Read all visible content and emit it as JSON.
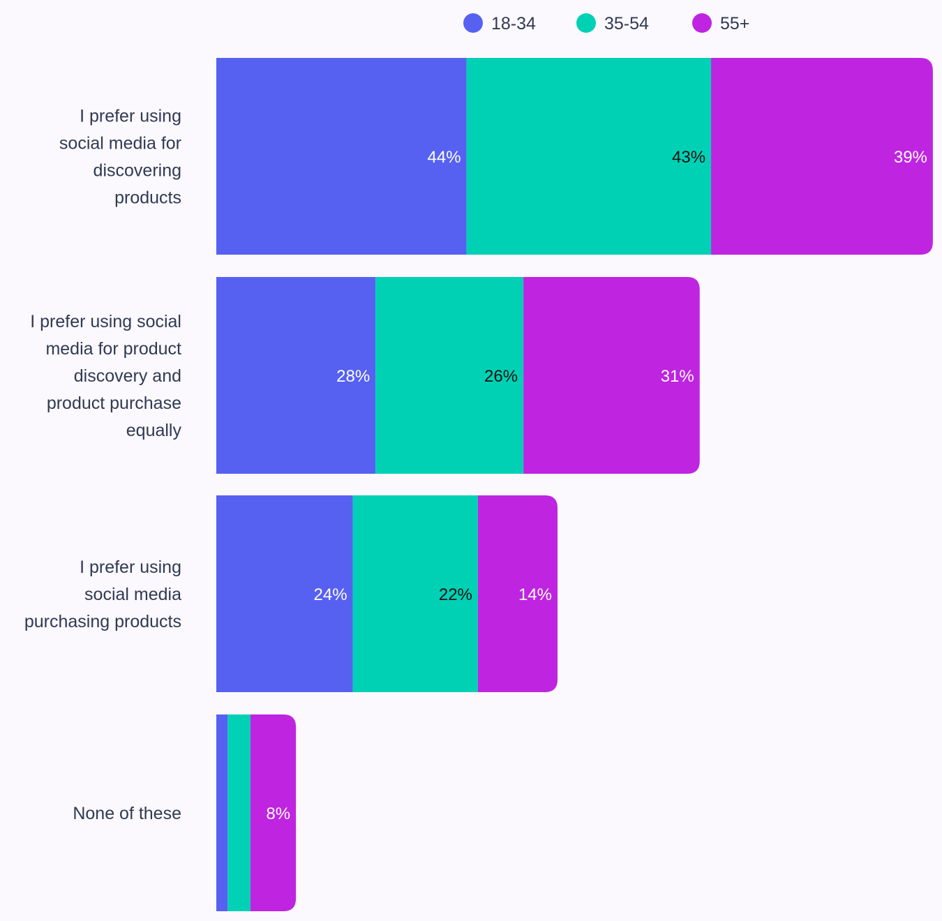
{
  "chart_data": {
    "type": "bar",
    "orientation": "horizontal",
    "stacked": true,
    "title": "",
    "xlabel": "",
    "ylabel": "",
    "grid": false,
    "legend_position": "top",
    "categories": [
      [
        "I prefer using",
        "social media for",
        "discovering",
        "products"
      ],
      [
        "I prefer using social",
        "media for product",
        "discovery and",
        "product purchase",
        "equally"
      ],
      [
        "I prefer using",
        "social media",
        "purchasing products"
      ],
      [
        "None of these"
      ]
    ],
    "series": [
      {
        "name": "18-34",
        "color": "#5661f2",
        "values": [
          44,
          28,
          24,
          2
        ],
        "labels": [
          "44%",
          "28%",
          "24%",
          ""
        ]
      },
      {
        "name": "35-54",
        "color": "#00d1b5",
        "values": [
          43,
          26,
          22,
          4
        ],
        "labels": [
          "43%",
          "26%",
          "22%",
          ""
        ]
      },
      {
        "name": "55+",
        "color": "#bf24e1",
        "values": [
          39,
          31,
          14,
          8
        ],
        "labels": [
          "39%",
          "31%",
          "14%",
          "8%"
        ]
      }
    ],
    "label_colors": [
      "#ffffff",
      "#111111",
      "#ffffff"
    ]
  }
}
